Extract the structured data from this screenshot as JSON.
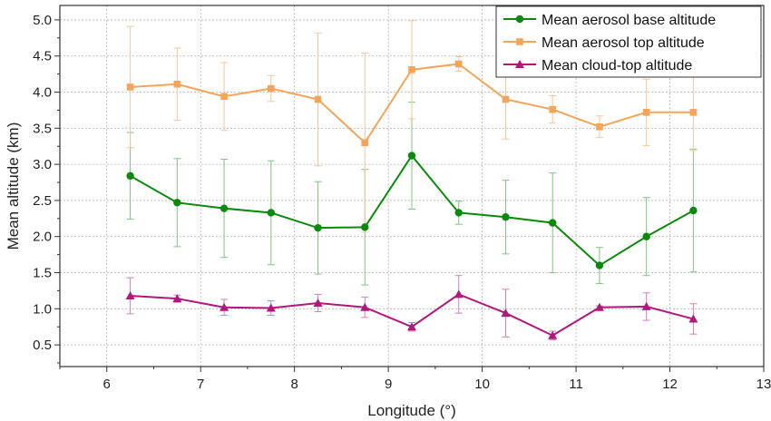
{
  "chart_data": {
    "type": "line",
    "xlabel": "Longitude (°)",
    "ylabel": "Mean altitude (km)",
    "xlim": [
      5.5,
      13
    ],
    "ylim": [
      0.2,
      5.2
    ],
    "xticks": [
      6,
      7,
      8,
      9,
      10,
      11,
      12,
      13
    ],
    "yticks": [
      0.5,
      1.0,
      1.5,
      2.0,
      2.5,
      3.0,
      3.5,
      4.0,
      4.5,
      5.0
    ],
    "xtick_labels": [
      "6",
      "7",
      "8",
      "9",
      "10",
      "11",
      "12",
      "13"
    ],
    "ytick_labels": [
      "0.5",
      "1.0",
      "1.5",
      "2.0",
      "2.5",
      "3.0",
      "3.5",
      "4.0",
      "4.5",
      "5.0"
    ],
    "grid": true,
    "legend_position": "top-right",
    "x": [
      6.25,
      6.75,
      7.25,
      7.75,
      8.25,
      8.75,
      9.25,
      9.75,
      10.25,
      10.75,
      11.25,
      11.75,
      12.25
    ],
    "series": [
      {
        "name": "Mean aerosol base altitude",
        "color": "#0a8a0a",
        "errorbar_color": "#7fc47f",
        "marker": "circle",
        "values": [
          2.84,
          2.47,
          2.39,
          2.33,
          2.12,
          2.13,
          3.12,
          2.33,
          2.27,
          2.19,
          1.6,
          2.0,
          2.36
        ],
        "errors": [
          0.6,
          0.61,
          0.68,
          0.72,
          0.64,
          0.8,
          0.74,
          0.16,
          0.51,
          0.69,
          0.25,
          0.54,
          0.85
        ]
      },
      {
        "name": "Mean aerosol top altitude",
        "color": "#f5a55a",
        "errorbar_color": "#f8c597",
        "marker": "square",
        "values": [
          4.07,
          4.11,
          3.94,
          4.05,
          3.9,
          3.3,
          4.31,
          4.39,
          3.9,
          3.76,
          3.52,
          3.72,
          3.72
        ],
        "errors": [
          0.84,
          0.5,
          0.47,
          0.18,
          0.92,
          1.24,
          0.68,
          0.1,
          0.55,
          0.19,
          0.15,
          0.46,
          0.53
        ]
      },
      {
        "name": "Mean cloud-top altitude",
        "color": "#b0187e",
        "errorbar_color": "#d67fb9",
        "marker": "triangle",
        "values": [
          1.18,
          1.14,
          1.02,
          1.01,
          1.08,
          1.02,
          0.75,
          1.2,
          0.94,
          0.63,
          1.02,
          1.03,
          0.86
        ],
        "errors": [
          0.25,
          0.05,
          0.11,
          0.1,
          0.12,
          0.14,
          0.06,
          0.26,
          0.33,
          0.06,
          0.02,
          0.19,
          0.21
        ]
      }
    ]
  }
}
